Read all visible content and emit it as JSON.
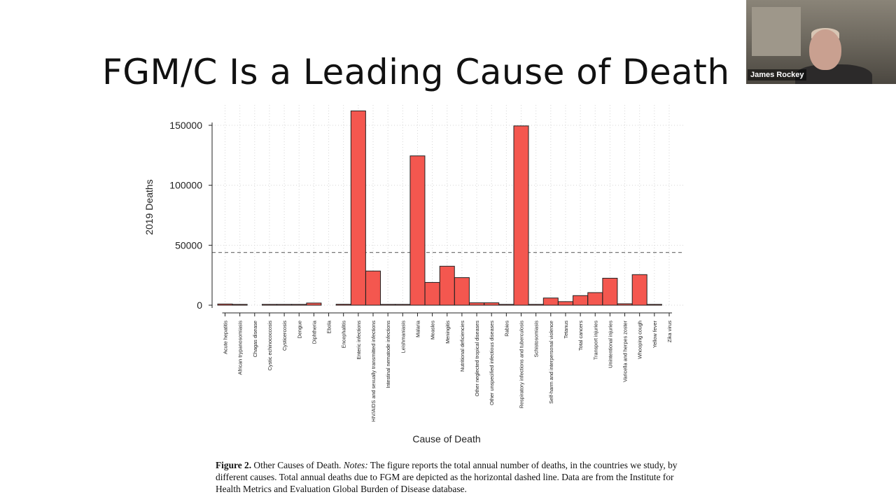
{
  "slide": {
    "title": "FGM/C Is a Leading Cause of Death"
  },
  "video": {
    "participant_name": "James Rockey"
  },
  "caption": {
    "figure_label": "Figure 2.",
    "figure_title": " Other Causes of Death. ",
    "notes_label": "Notes:",
    "notes_text": " The figure reports the total annual number of deaths, in the countries we study, by different causes. Total annual deaths due to FGM are depicted as the horizontal dashed line. Data are from the Institute for Health Metrics and Evaluation Global Burden of Disease database."
  },
  "chart_data": {
    "type": "bar",
    "title": "",
    "xlabel": "Cause of Death",
    "ylabel": "2019 Deaths",
    "ylim": [
      0,
      165000
    ],
    "yticks": [
      0,
      50000,
      100000,
      150000
    ],
    "ytick_labels": [
      "0",
      "50000",
      "100000",
      "150000"
    ],
    "grid": true,
    "fgm_reference_line": 44000,
    "bar_color": "#f4574f",
    "categories": [
      "Acute hepatitis",
      "African trypanosomiasis",
      "Chagas disease",
      "Cystic echinococcosis",
      "Cysticercosis",
      "Dengue",
      "Diphtheria",
      "Ebola",
      "Encephalitis",
      "Enteric infections",
      "HIV/AIDS and sexually transmitted infections",
      "Intestinal nematode infections",
      "Leishmaniasis",
      "Malaria",
      "Measles",
      "Meningitis",
      "Nutritional deficiencies",
      "Other neglected tropical diseases",
      "Other unspecified infectious diseases",
      "Rabies",
      "Respiratory infections and tuberculosis",
      "Schistosomiasis",
      "Self-harm and interpersonal violence",
      "Tetanus",
      "Total cancers",
      "Transport injuries",
      "Unintentional injuries",
      "Varicella and herpes zoster",
      "Whooping cough",
      "Yellow fever",
      "Zika virus"
    ],
    "values": [
      1000,
      400,
      0,
      400,
      500,
      300,
      1800,
      0,
      800,
      162000,
      28500,
      200,
      200,
      124500,
      19000,
      32500,
      23000,
      2000,
      2000,
      700,
      149500,
      300,
      6000,
      3000,
      8000,
      10500,
      22500,
      1200,
      25500,
      300,
      0
    ]
  }
}
